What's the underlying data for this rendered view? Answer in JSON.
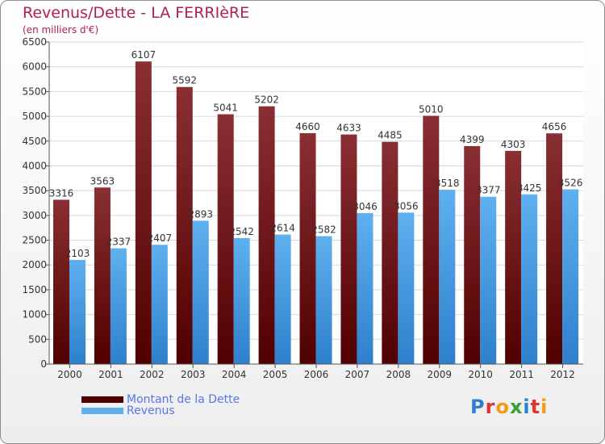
{
  "header": {
    "title": "Revenus/Dette - LA FERRIèRE",
    "subtitle": "(en milliers d'€)"
  },
  "colors": {
    "debt_top": "#8a2f33",
    "debt_bottom": "#500000",
    "revenue_top": "#5fb0ef",
    "revenue_bottom": "#2e80cc",
    "title": "#b12247",
    "legend_text": "#5577ee"
  },
  "legend": {
    "debt_label": "Montant de la Dette",
    "revenue_label": "Revenus"
  },
  "logo": {
    "text": "Proxiti",
    "letter_colors": [
      "#2f7fd0",
      "#e0332f",
      "#f29a1a",
      "#3a9f3a",
      "#2f7fd0",
      "#e0332f",
      "#f29a1a"
    ]
  },
  "chart_data": {
    "type": "bar",
    "title": "Revenus/Dette - LA FERRIèRE",
    "subtitle": "(en milliers d'€)",
    "categories": [
      "2000",
      "2001",
      "2002",
      "2003",
      "2004",
      "2005",
      "2006",
      "2007",
      "2008",
      "2009",
      "2010",
      "2011",
      "2012"
    ],
    "series": [
      {
        "name": "Montant de la Dette",
        "values": [
          3316,
          3563,
          6107,
          5592,
          5041,
          5202,
          4660,
          4633,
          4485,
          5010,
          4399,
          4303,
          4656
        ]
      },
      {
        "name": "Revenus",
        "values": [
          2103,
          2337,
          2407,
          2893,
          2542,
          2614,
          2582,
          3046,
          3056,
          3518,
          3377,
          3425,
          3526
        ]
      }
    ],
    "ylim": [
      0,
      6500
    ],
    "yticks": [
      0,
      500,
      1000,
      1500,
      2000,
      2500,
      3000,
      3500,
      4000,
      4500,
      5000,
      5500,
      6000,
      6500
    ],
    "grid": true,
    "legend_position": "bottom-left"
  }
}
